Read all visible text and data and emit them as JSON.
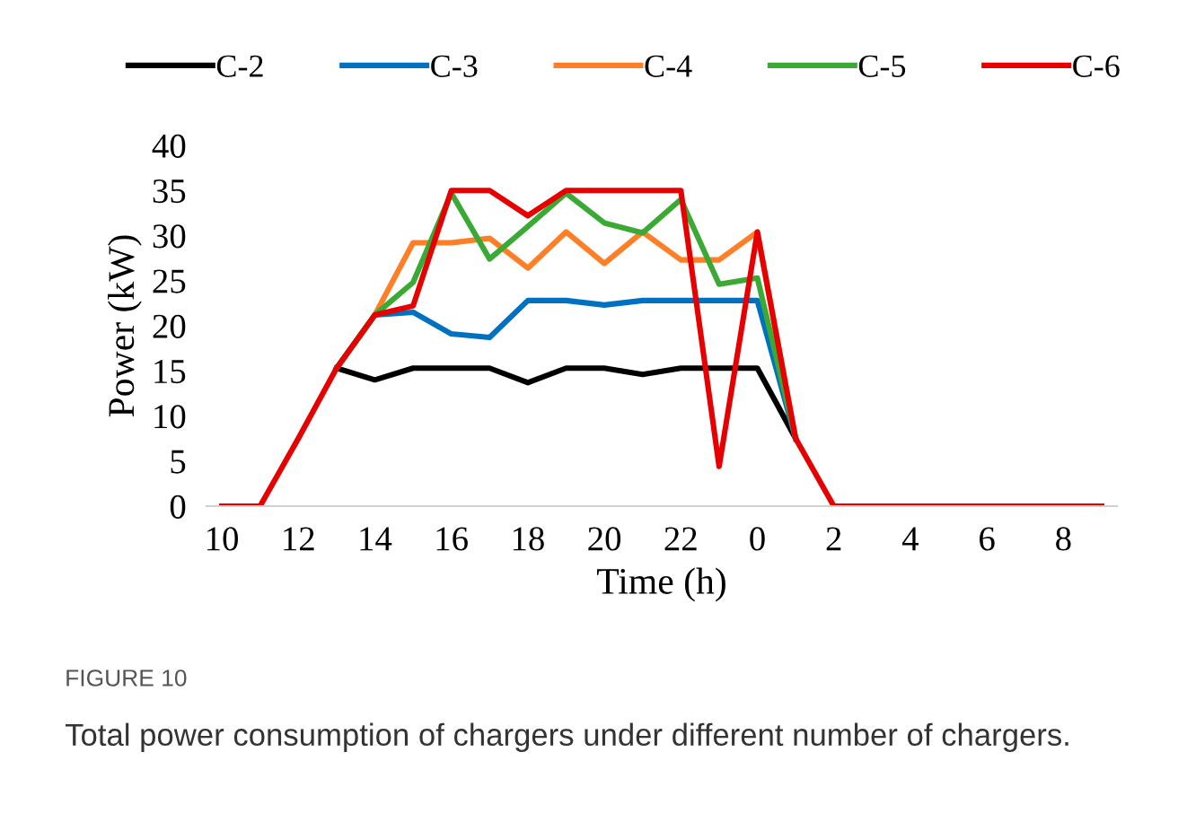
{
  "chart_data": {
    "type": "line",
    "xlabel": "Time (h)",
    "ylabel": "Power (kW)",
    "categories": [
      "10",
      null,
      "12",
      null,
      "14",
      null,
      "16",
      null,
      "18",
      null,
      "20",
      null,
      "22",
      null,
      "0",
      null,
      "2",
      null,
      "4",
      null,
      "6",
      null,
      "8",
      null
    ],
    "series": [
      {
        "name": "C-2",
        "color": "#000000",
        "values": [
          null,
          null,
          null,
          15.3,
          14,
          15.3,
          15.3,
          15.3,
          13.7,
          15.3,
          15.3,
          14.6,
          15.3,
          15.3,
          15.3,
          7.5,
          null,
          null,
          null,
          null,
          null,
          null,
          null,
          null
        ]
      },
      {
        "name": "C-3",
        "color": "#0070c0",
        "values": [
          null,
          null,
          null,
          15.3,
          21.2,
          21.5,
          19.1,
          18.7,
          22.8,
          22.8,
          22.3,
          22.8,
          22.8,
          22.8,
          22.8,
          7.5,
          null,
          null,
          null,
          null,
          null,
          null,
          null,
          null
        ]
      },
      {
        "name": "C-4",
        "color": "#ff7f27",
        "values": [
          null,
          null,
          null,
          15.3,
          21.2,
          29.2,
          29.2,
          29.7,
          26.4,
          30.4,
          26.9,
          30.4,
          27.3,
          27.3,
          30.4,
          7.5,
          null,
          null,
          null,
          null,
          null,
          null,
          null,
          null
        ]
      },
      {
        "name": "C-5",
        "color": "#3aaa35",
        "values": [
          null,
          null,
          null,
          15.3,
          21.2,
          24.8,
          34.7,
          27.4,
          31,
          34.7,
          31.4,
          30.3,
          34,
          24.6,
          25.3,
          7.5,
          null,
          null,
          null,
          null,
          null,
          null,
          null,
          null
        ]
      },
      {
        "name": "C-6",
        "color": "#e60000",
        "values": [
          0,
          0,
          7.5,
          15.3,
          21.2,
          22.2,
          35,
          35,
          32.2,
          35,
          35,
          35,
          35,
          4.4,
          30.4,
          7.5,
          0,
          0,
          0,
          0,
          0,
          0,
          0,
          0
        ]
      }
    ],
    "ylim": [
      0,
      40
    ],
    "yticks": [
      0,
      5,
      10,
      15,
      20,
      25,
      30,
      35,
      40
    ],
    "legend": "top",
    "grid": false,
    "marker": "none",
    "line_style": "solid",
    "annotations": [
      "FIGURE 10",
      "Total power consumption of chargers under different number of chargers."
    ]
  }
}
